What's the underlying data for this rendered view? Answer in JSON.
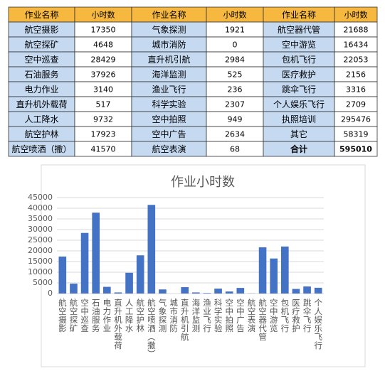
{
  "table": {
    "header": [
      "作业名称",
      "小时数",
      "作业名称",
      "小时数",
      "作业名称",
      "小时数"
    ],
    "rows": [
      [
        "航空摄影",
        "17350",
        "气象探测",
        "1921",
        "航空器代管",
        "21688"
      ],
      [
        "航空探矿",
        "4648",
        "城市消防",
        "0",
        "空中游览",
        "16434"
      ],
      [
        "空中巡查",
        "28429",
        "直升机引航",
        "2984",
        "包机飞行",
        "22053"
      ],
      [
        "石油服务",
        "37926",
        "海洋监测",
        "525",
        "医疗救护",
        "2156"
      ],
      [
        "电力作业",
        "3140",
        "渔业飞行",
        "236",
        "跳伞飞行",
        "3316"
      ],
      [
        "直升机外载荷",
        "517",
        "科学实验",
        "2307",
        "个人娱乐飞行",
        "2709"
      ],
      [
        "人工降水",
        "9732",
        "空中拍照",
        "949",
        "执照培训",
        "295476"
      ],
      [
        "航空护林",
        "17923",
        "空中广告",
        "2634",
        "其它",
        "58319"
      ],
      [
        "航空喷洒（撒）",
        "41570",
        "航空表演",
        "68",
        "合计",
        "595010"
      ]
    ]
  },
  "chart_data": {
    "type": "bar",
    "title": "作业小时数",
    "categories": [
      "航空摄影",
      "航空探矿",
      "空中巡查",
      "石油服务",
      "电力作业",
      "直升机外载荷",
      "人工降水",
      "航空护林",
      "航空喷洒（撒）",
      "气象探测",
      "城市消防",
      "直升机引航",
      "海洋监测",
      "渔业飞行",
      "科学实验",
      "空中拍照",
      "空中广告",
      "航空表演",
      "航空器代管",
      "空中游览",
      "包机飞行",
      "医疗救护",
      "跳伞飞行",
      "个人娱乐飞行"
    ],
    "values": [
      17350,
      4648,
      28429,
      37926,
      3140,
      517,
      9732,
      17923,
      41570,
      1921,
      0,
      2984,
      525,
      236,
      2307,
      949,
      2634,
      68,
      21688,
      16434,
      22053,
      2156,
      3316,
      2709
    ],
    "color": "#4472c4",
    "ylim": [
      0,
      45000
    ],
    "yticks": [
      0,
      5000,
      10000,
      15000,
      20000,
      25000,
      30000,
      35000,
      40000,
      45000
    ],
    "grid": true
  }
}
